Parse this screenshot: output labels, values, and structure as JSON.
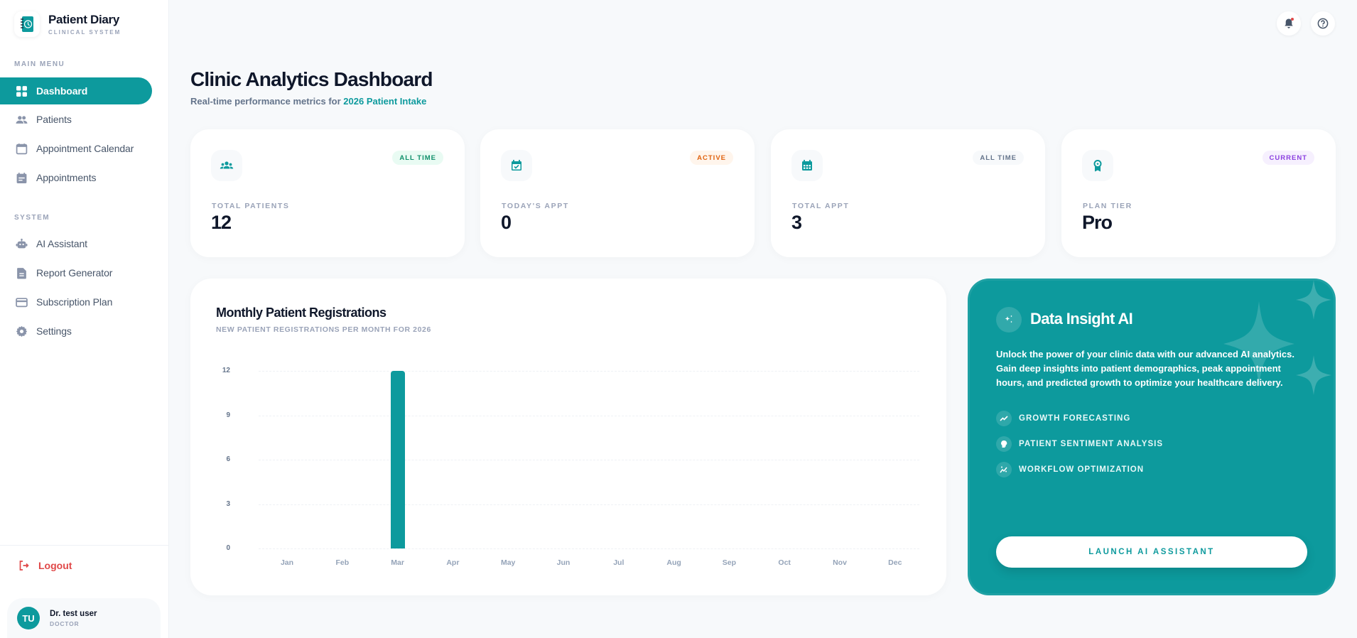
{
  "app": {
    "title": "Patient Diary",
    "subtitle": "CLINICAL SYSTEM"
  },
  "sidebar": {
    "main_menu_label": "MAIN MENU",
    "system_label": "SYSTEM",
    "main_items": [
      {
        "label": "Dashboard",
        "icon": "grid-icon",
        "active": true
      },
      {
        "label": "Patients",
        "icon": "people-icon"
      },
      {
        "label": "Appointment Calendar",
        "icon": "calendar-icon"
      },
      {
        "label": "Appointments",
        "icon": "event-note-icon"
      }
    ],
    "system_items": [
      {
        "label": "AI Assistant",
        "icon": "robot-icon"
      },
      {
        "label": "Report Generator",
        "icon": "document-icon"
      },
      {
        "label": "Subscription Plan",
        "icon": "credit-card-icon"
      },
      {
        "label": "Settings",
        "icon": "gear-icon"
      }
    ],
    "logout_label": "Logout",
    "user": {
      "initials": "TU",
      "name": "Dr. test user",
      "role": "DOCTOR"
    }
  },
  "topbar": {
    "notifications_icon": "bell-icon",
    "help_icon": "help-circle-icon"
  },
  "header": {
    "title": "Clinic Analytics Dashboard",
    "subtitle_prefix": "Real-time performance metrics for ",
    "subtitle_highlight": "2026 Patient Intake"
  },
  "stats": [
    {
      "label": "TOTAL PATIENTS",
      "value": "12",
      "badge": "ALL TIME",
      "badge_color": "#0f8f6a",
      "badge_bg": "#e9fbf3",
      "icon": "groups-icon"
    },
    {
      "label": "TODAY'S APPT",
      "value": "0",
      "badge": "ACTIVE",
      "badge_color": "#e0620f",
      "badge_bg": "#fff5ec",
      "icon": "calendar-check-icon"
    },
    {
      "label": "TOTAL APPT",
      "value": "3",
      "badge": "ALL TIME",
      "badge_color": "#64748b",
      "badge_bg": "#f7f9fb",
      "icon": "calendar-month-icon"
    },
    {
      "label": "PLAN TIER",
      "value": "Pro",
      "badge": "CURRENT",
      "badge_color": "#8b3fe0",
      "badge_bg": "#f6f0fe",
      "icon": "award-icon"
    }
  ],
  "chart_card": {
    "title": "Monthly Patient Registrations",
    "subtitle": "NEW PATIENT REGISTRATIONS PER MONTH FOR 2026"
  },
  "chart_data": {
    "type": "bar",
    "title": "Monthly Patient Registrations",
    "subtitle": "NEW PATIENT REGISTRATIONS PER MONTH FOR 2026",
    "categories": [
      "Jan",
      "Feb",
      "Mar",
      "Apr",
      "May",
      "Jun",
      "Jul",
      "Aug",
      "Sep",
      "Oct",
      "Nov",
      "Dec"
    ],
    "values": [
      0,
      0,
      12,
      0,
      0,
      0,
      0,
      0,
      0,
      0,
      0,
      0
    ],
    "yticks": [
      "12",
      "9",
      "6",
      "3",
      "0"
    ],
    "ylim": [
      0,
      12
    ],
    "xlabel": "",
    "ylabel": "",
    "grid": true,
    "color": "#0d9a9d"
  },
  "ai_card": {
    "title": "Data Insight AI",
    "description": "Unlock the power of your clinic data with our advanced AI analytics. Gain deep insights into patient demographics, peak appointment hours, and predicted growth to optimize your healthcare delivery.",
    "features": [
      {
        "label": "GROWTH FORECASTING",
        "icon": "trending-up-icon"
      },
      {
        "label": "PATIENT SENTIMENT ANALYSIS",
        "icon": "psychology-icon"
      },
      {
        "label": "WORKFLOW OPTIMIZATION",
        "icon": "auto-graph-icon"
      }
    ],
    "button_label": "LAUNCH AI ASSISTANT"
  },
  "colors": {
    "accent": "#0d9a9d",
    "danger": "#e04848",
    "text_primary": "#0f172a",
    "text_muted": "#9aa3b8"
  }
}
